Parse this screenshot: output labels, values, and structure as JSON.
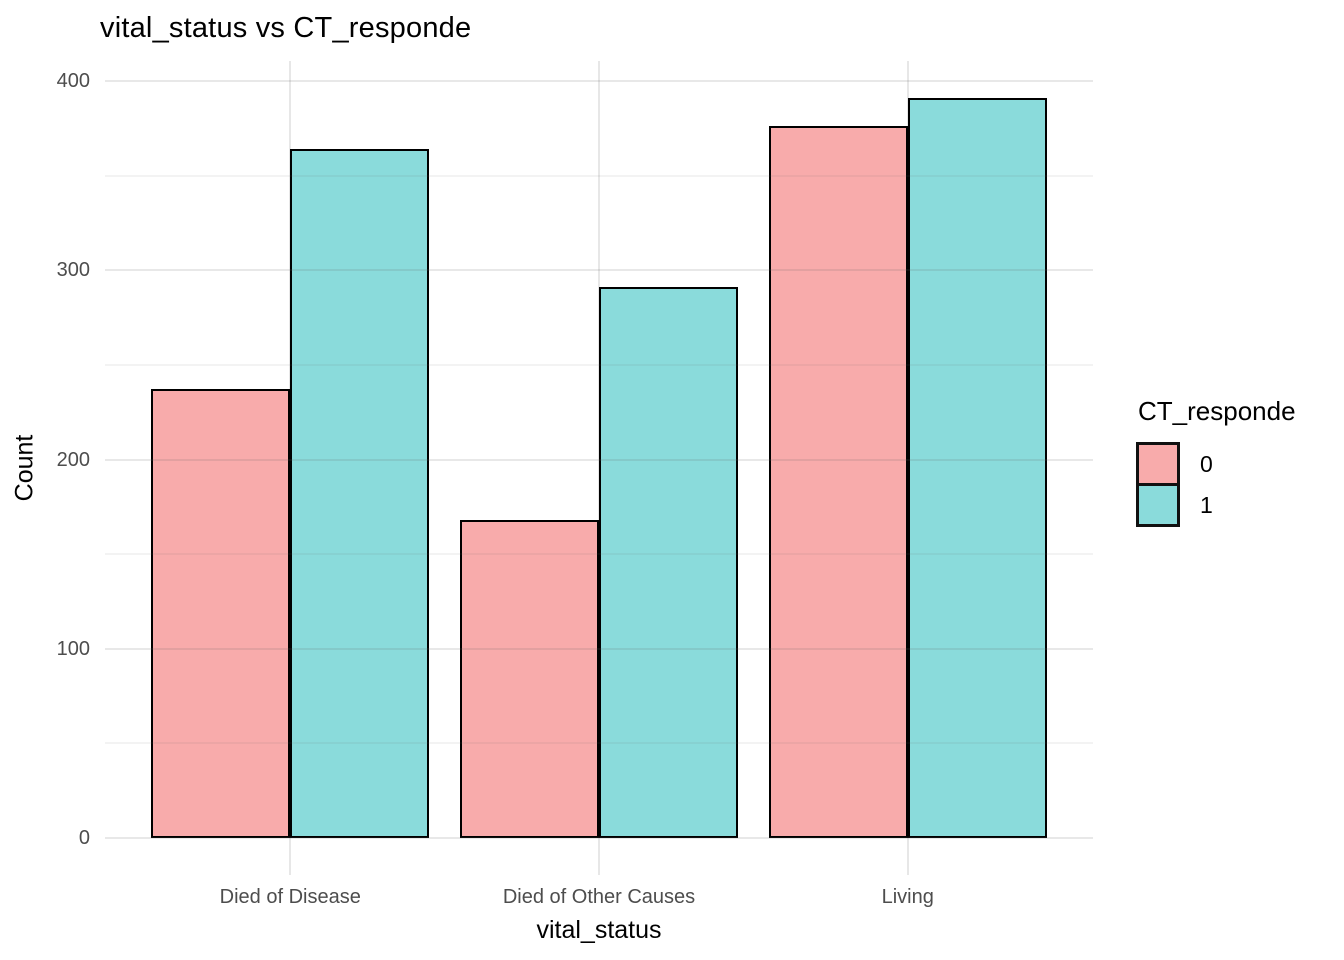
{
  "chart_data": {
    "type": "bar",
    "title": "vital_status vs CT_responde",
    "xlabel": "vital_status",
    "ylabel": "Count",
    "categories": [
      "Died of Disease",
      "Died of Other Causes",
      "Living"
    ],
    "series": [
      {
        "name": "0",
        "color": "#F8ABAB",
        "values": [
          237,
          168,
          376
        ]
      },
      {
        "name": "1",
        "color": "#8ADBDB",
        "values": [
          364,
          291,
          391
        ]
      }
    ],
    "legend_title": "CT_responde",
    "y_ticks": [
      0,
      100,
      200,
      300,
      400
    ],
    "y_minor_ticks": [
      50,
      150,
      250,
      350
    ],
    "ylim": [
      -20,
      411
    ],
    "grid": true,
    "legend_position": "right",
    "colors": {
      "bar_outline": "#000000",
      "major_grid": "#e7e7e7",
      "minor_grid": "#f2f2f2",
      "tick_text": "#4d4d4d",
      "title_text": "#000000",
      "background": "#ffffff"
    }
  }
}
